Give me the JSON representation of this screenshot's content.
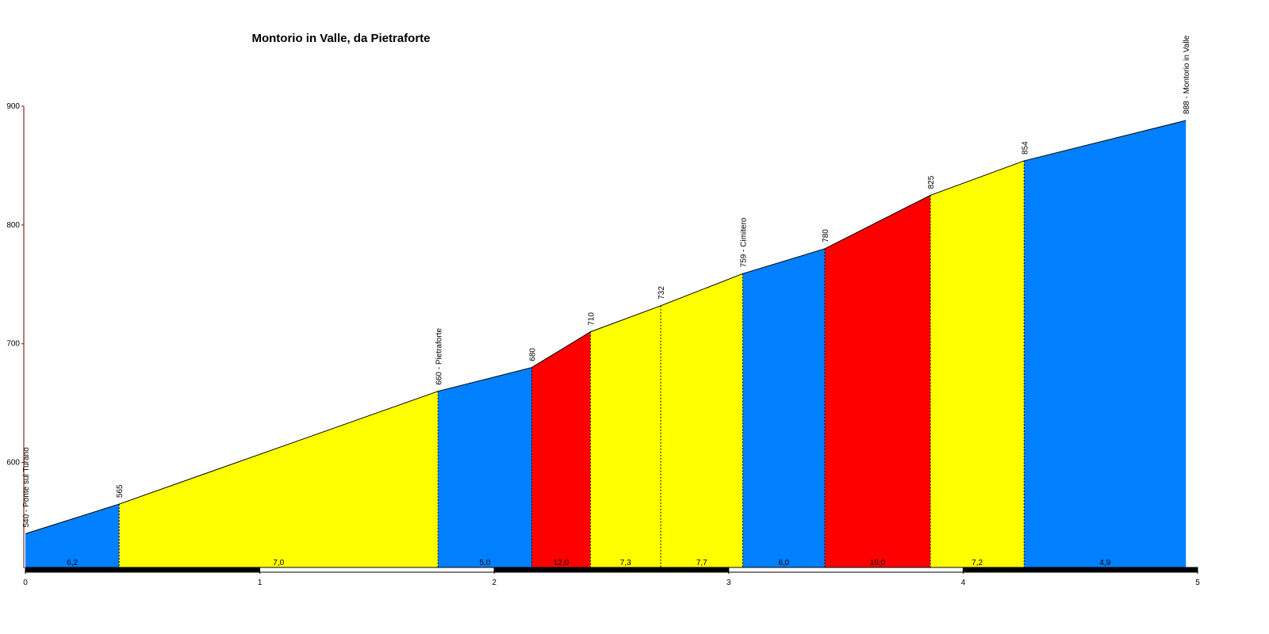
{
  "chart_data": {
    "type": "climb-profile",
    "title": "Montorio in Valle, da Pietraforte",
    "x": [
      0,
      0.4,
      1.76,
      2.16,
      2.41,
      2.71,
      3.06,
      3.41,
      3.86,
      4.26,
      4.95
    ],
    "values": [
      540,
      565,
      660,
      680,
      710,
      732,
      759,
      780,
      825,
      854,
      888
    ],
    "value_labels": [
      "540 - Ponte sul Turano",
      "565",
      "660 - Pietraforte",
      "680",
      "710",
      "732",
      "759 - Cimitero",
      "780",
      "825",
      "854",
      "888 - Montorio in Valle"
    ],
    "segments": {
      "values": [
        6.2,
        7.0,
        5.0,
        12.0,
        7.3,
        7.7,
        6.0,
        10.0,
        7.2,
        4.9
      ],
      "value_labels": [
        "6,2",
        "7,0",
        "5,0",
        "12,0",
        "7,3",
        "7,7",
        "6,0",
        "10,0",
        "7,2",
        "4,9"
      ],
      "colors": [
        "#0080ff",
        "#ffff00",
        "#0080ff",
        "#ff0000",
        "#ffff00",
        "#ffff00",
        "#0080ff",
        "#ff0000",
        "#ffff00",
        "#0080ff"
      ]
    },
    "xlim": [
      0,
      5
    ],
    "xticks": [
      0,
      1,
      2,
      3,
      4,
      5
    ],
    "ylim": [
      511,
      900
    ],
    "yticks": [
      600,
      700,
      800,
      900
    ]
  }
}
